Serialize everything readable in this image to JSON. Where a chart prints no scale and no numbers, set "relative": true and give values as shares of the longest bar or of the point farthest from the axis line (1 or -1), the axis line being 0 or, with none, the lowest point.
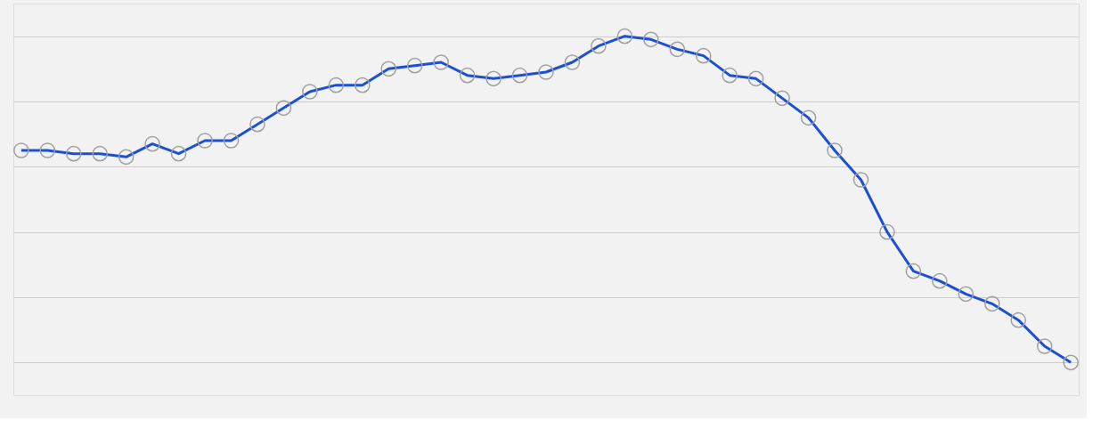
{
  "chart_data": {
    "type": "line",
    "relative": true,
    "grid": "y",
    "marker": "circle",
    "line_style": "solid",
    "categories": [
      null,
      null,
      null,
      null,
      null,
      null,
      null,
      null,
      null,
      null,
      null,
      null,
      null,
      null,
      null,
      null,
      null,
      null,
      null,
      null,
      null,
      null,
      null,
      null,
      null,
      null,
      null,
      null,
      null,
      null,
      null,
      null,
      null,
      null,
      null,
      null,
      null,
      null,
      null,
      null,
      null
    ],
    "series": [
      {
        "color": "#1a4fd6",
        "values": [
          0.65,
          0.65,
          0.64,
          0.64,
          0.63,
          0.67,
          0.64,
          0.68,
          0.68,
          0.73,
          0.78,
          0.83,
          0.85,
          0.85,
          0.9,
          0.91,
          0.92,
          0.88,
          0.87,
          0.88,
          0.89,
          0.92,
          0.97,
          1,
          0.99,
          0.96,
          0.94,
          0.88,
          0.87,
          0.81,
          0.75,
          0.65,
          0.56,
          0.4,
          0.28,
          0.25,
          0.21,
          0.18,
          0.13,
          0.05,
          0
        ]
      }
    ]
  }
}
